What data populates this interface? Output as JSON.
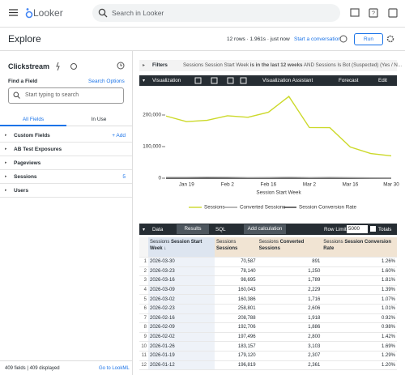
{
  "top_bar": {
    "logo": "Looker",
    "search_placeholder": "Search in Looker"
  },
  "header": {
    "title": "Explore",
    "status": "12 rows · 1.961s · just now",
    "conversation": "Start a conversation",
    "run": "Run"
  },
  "sidebar": {
    "model": "Clickstream",
    "find_label": "Find a Field",
    "search_options": "Search Options",
    "search_placeholder": "Start typing to search",
    "tabs": [
      "All Fields",
      "In Use"
    ],
    "groups": [
      {
        "label": "Custom Fields",
        "action": "+ Add"
      },
      {
        "label": "AB Test Exposures"
      },
      {
        "label": "Pageviews"
      },
      {
        "label": "Sessions",
        "count": 5
      },
      {
        "label": "Users"
      }
    ],
    "footer": "409 fields | 409 displayed",
    "lookml_link": "Go to LookML"
  },
  "filters": {
    "label": "Filters",
    "parts": [
      "Sessions Session Start Week",
      "is in the last 12 weeks",
      "AND",
      "Sessions Is Bot (Suspected) (Yes / N..."
    ]
  },
  "visualization": {
    "label": "Visualization",
    "assistant": "Visualization Assistant",
    "forecast": "Forecast",
    "edit": "Edit"
  },
  "chart_data": {
    "type": "line",
    "x_label": "Session Start Week",
    "categories": [
      null,
      "Jan 19",
      null,
      "Feb 2",
      null,
      "Feb 16",
      null,
      "Mar 2",
      null,
      "Mar 16",
      null,
      "Mar 30"
    ],
    "series": [
      {
        "name": "Sessions",
        "color": "#ccd92a",
        "values": [
          196819,
          179120,
          183157,
          197496,
          192706,
          208788,
          258801,
          160386,
          160043,
          98695,
          78140,
          70587
        ]
      },
      {
        "name": "Converted Sessions",
        "color": "#9a9a9a",
        "values": [
          2361,
          2307,
          3103,
          2800,
          1886,
          1918,
          2606,
          1716,
          2229,
          1789,
          1250,
          891
        ]
      },
      {
        "name": "Session Conversion Rate",
        "color": "#333333",
        "values": [
          1.2,
          1.29,
          1.69,
          1.42,
          0.98,
          0.92,
          1.01,
          1.07,
          1.39,
          1.81,
          1.6,
          1.26
        ]
      }
    ],
    "ylim": [
      0,
      270000
    ],
    "yticks": [
      0,
      {
        "value": 100000,
        "label": "100,000"
      },
      {
        "value": 200000,
        "label": "200,000"
      }
    ],
    "grid": false,
    "legend": "bottom"
  },
  "data_panel": {
    "label": "Data",
    "tabs": [
      "Results",
      "SQL"
    ],
    "add_calculation": "Add calculation",
    "row_limit_label": "Row Limit",
    "row_limit": "5000",
    "totals": "Totals"
  },
  "table": {
    "columns": [
      {
        "view": "Sessions",
        "field": "Session Start Week",
        "sort": "↓"
      },
      {
        "view": "Sessions",
        "field": "Sessions"
      },
      {
        "view": "Sessions",
        "field": "Converted Sessions"
      },
      {
        "view": "Sessions",
        "field": "Session Conversion Rate"
      }
    ],
    "rows": [
      [
        "1",
        "2026-03-30",
        "70,587",
        "891",
        "1.26%"
      ],
      [
        "2",
        "2026-03-23",
        "78,140",
        "1,250",
        "1.60%"
      ],
      [
        "3",
        "2026-03-16",
        "98,695",
        "1,789",
        "1.81%"
      ],
      [
        "4",
        "2026-03-09",
        "160,043",
        "2,229",
        "1.39%"
      ],
      [
        "5",
        "2026-03-02",
        "160,386",
        "1,716",
        "1.07%"
      ],
      [
        "6",
        "2026-02-23",
        "258,801",
        "2,606",
        "1.01%"
      ],
      [
        "7",
        "2026-02-16",
        "208,788",
        "1,918",
        "0.92%"
      ],
      [
        "8",
        "2026-02-09",
        "192,706",
        "1,886",
        "0.98%"
      ],
      [
        "9",
        "2026-02-02",
        "197,496",
        "2,800",
        "1.42%"
      ],
      [
        "10",
        "2026-01-26",
        "183,157",
        "3,103",
        "1.69%"
      ],
      [
        "11",
        "2026-01-19",
        "179,120",
        "2,307",
        "1.29%"
      ],
      [
        "12",
        "2026-01-12",
        "196,819",
        "2,361",
        "1.20%"
      ]
    ]
  }
}
